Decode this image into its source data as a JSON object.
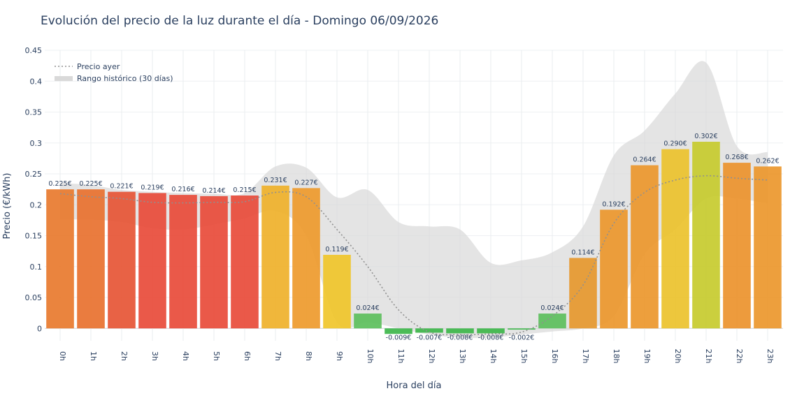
{
  "chart_data": {
    "type": "bar",
    "title": "Evolución del precio de la luz durante el día - Domingo 06/09/2026",
    "xlabel": "Hora del día",
    "ylabel": "Precio (€/kWh)",
    "ylim": [
      -0.02,
      0.45
    ],
    "yticks": [
      "0",
      "0.05",
      "0.1",
      "0.15",
      "0.2",
      "0.25",
      "0.3",
      "0.35",
      "0.4",
      "0.45"
    ],
    "ytick_values": [
      0,
      0.05,
      0.1,
      0.15,
      0.2,
      0.25,
      0.3,
      0.35,
      0.4,
      0.45
    ],
    "grid": true,
    "legend_position": "top-left",
    "categories": [
      "0h",
      "1h",
      "2h",
      "3h",
      "4h",
      "5h",
      "6h",
      "7h",
      "8h",
      "9h",
      "10h",
      "11h",
      "12h",
      "13h",
      "14h",
      "15h",
      "16h",
      "17h",
      "18h",
      "19h",
      "20h",
      "21h",
      "22h",
      "23h"
    ],
    "series": [
      {
        "values": [
          0.225,
          0.225,
          0.221,
          0.219,
          0.216,
          0.214,
          0.215,
          0.231,
          0.227,
          0.119,
          0.024,
          -0.009,
          -0.007,
          -0.008,
          -0.008,
          -0.002,
          0.024,
          0.114,
          0.192,
          0.264,
          0.29,
          0.302,
          0.268,
          0.262
        ],
        "labels": [
          "0.225€",
          "0.225€",
          "0.221€",
          "0.219€",
          "0.216€",
          "0.214€",
          "0.215€",
          "0.231€",
          "0.227€",
          "0.119€",
          "0.024€",
          "-0.009€",
          "-0.007€",
          "-0.008€",
          "-0.008€",
          "-0.002€",
          "0.024€",
          "0.114€",
          "0.192€",
          "0.264€",
          "0.290€",
          "0.302€",
          "0.268€",
          "0.262€"
        ],
        "colors": [
          "#e87a2e",
          "#e8712f",
          "#e65535",
          "#e84b3a",
          "#e84b3a",
          "#e84b3a",
          "#e84b3a",
          "#efb12a",
          "#ee9a2c",
          "#f0c52a",
          "#5cbf5c",
          "#3db64a",
          "#3db64a",
          "#3db64a",
          "#3db64a",
          "#3db64a",
          "#5cbf5c",
          "#e6982e",
          "#eb972c",
          "#eb972c",
          "#ecc22c",
          "#c7cb2e",
          "#ec932c",
          "#ec972c"
        ]
      },
      {
        "name": "Precio ayer",
        "type": "line",
        "style": "dotted",
        "color": "#909090",
        "values": [
          0.218,
          0.213,
          0.21,
          0.204,
          0.203,
          0.204,
          0.205,
          0.22,
          0.213,
          0.16,
          0.1,
          0.03,
          -0.006,
          -0.01,
          -0.009,
          -0.006,
          0.02,
          0.07,
          0.17,
          0.22,
          0.24,
          0.247,
          0.243,
          0.24
        ]
      },
      {
        "name": "Rango histórico (30 días)",
        "type": "area-range",
        "color": "#d9d9d9",
        "upper": [
          0.235,
          0.232,
          0.224,
          0.221,
          0.219,
          0.218,
          0.219,
          0.262,
          0.26,
          0.212,
          0.224,
          0.172,
          0.165,
          0.16,
          0.106,
          0.11,
          0.123,
          0.165,
          0.28,
          0.32,
          0.38,
          0.43,
          0.295,
          0.285
        ],
        "lower": [
          0.176,
          0.176,
          0.172,
          0.162,
          0.16,
          0.168,
          0.178,
          0.19,
          0.15,
          0.01,
          0.01,
          0.0,
          -0.01,
          -0.015,
          -0.015,
          -0.01,
          -0.005,
          0.0,
          0.02,
          0.12,
          0.16,
          0.21,
          0.21,
          0.202
        ]
      }
    ]
  }
}
